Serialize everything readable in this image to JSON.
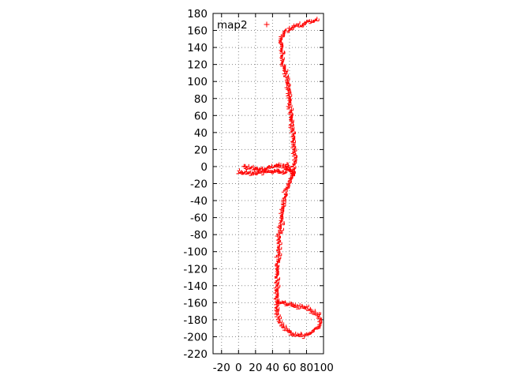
{
  "chart_data": {
    "type": "scatter",
    "title": "",
    "xlabel": "",
    "ylabel": "",
    "xlim": [
      -30,
      100
    ],
    "ylim": [
      -220,
      180
    ],
    "xticks": [
      -20,
      0,
      20,
      40,
      60,
      80,
      100
    ],
    "yticks": [
      -220,
      -200,
      -180,
      -160,
      -140,
      -120,
      -100,
      -80,
      -60,
      -40,
      -20,
      0,
      20,
      40,
      60,
      80,
      100,
      120,
      140,
      160,
      180
    ],
    "grid": true,
    "legend_position": "top-left",
    "marker": "+",
    "series": [
      {
        "name": "map2",
        "color": "#ff0000",
        "paths": [
          {
            "thickness": 3.5,
            "points": [
              [
                45,
                -170
              ],
              [
                47,
                -110
              ],
              [
                49,
                -90
              ],
              [
                52,
                -55
              ],
              [
                57,
                -30
              ],
              [
                65,
                -8
              ],
              [
                68,
                5
              ],
              [
                65,
                40
              ],
              [
                62,
                70
              ],
              [
                58,
                100
              ],
              [
                53,
                120
              ],
              [
                50,
                145
              ],
              [
                53,
                155
              ],
              [
                64,
                163
              ],
              [
                78,
                167
              ],
              [
                90,
                171
              ],
              [
                95,
                173
              ]
            ]
          },
          {
            "thickness": 3,
            "points": [
              [
                45,
                -170
              ],
              [
                50,
                -185
              ],
              [
                62,
                -197
              ],
              [
                75,
                -200
              ],
              [
                88,
                -196
              ],
              [
                97,
                -187
              ],
              [
                96,
                -176
              ],
              [
                82,
                -168
              ],
              [
                65,
                -164
              ],
              [
                45,
                -160
              ]
            ]
          },
          {
            "thickness": 2.5,
            "points": [
              [
                0,
                -7
              ],
              [
                15,
                -9
              ],
              [
                25,
                -8
              ],
              [
                35,
                -7
              ],
              [
                45,
                -6
              ],
              [
                58,
                -8
              ]
            ]
          },
          {
            "thickness": 2.5,
            "points": [
              [
                6,
                -1
              ],
              [
                18,
                -3
              ],
              [
                30,
                -4
              ],
              [
                40,
                -1
              ],
              [
                48,
                2
              ],
              [
                55,
                -2
              ],
              [
                62,
                -6
              ]
            ]
          },
          {
            "thickness": 2,
            "points": [
              [
                57,
                2
              ],
              [
                62,
                -5
              ],
              [
                66,
                -12
              ]
            ]
          }
        ]
      }
    ]
  }
}
